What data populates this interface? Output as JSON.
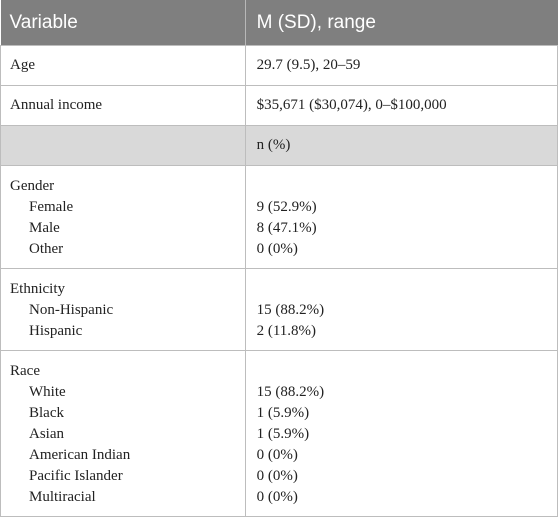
{
  "header": {
    "col1": "Variable",
    "col2": "M (SD), range"
  },
  "rows": [
    {
      "label": "Age",
      "value": "29.7 (9.5), 20–59"
    },
    {
      "label": "Annual income",
      "value": "$35,671 ($30,074), 0–$100,000"
    }
  ],
  "subheader": {
    "col2": "n (%)"
  },
  "groups": [
    {
      "title": "Gender",
      "items": [
        {
          "label": "Female",
          "value": "9 (52.9%)"
        },
        {
          "label": "Male",
          "value": "8 (47.1%)"
        },
        {
          "label": "Other",
          "value": "0 (0%)"
        }
      ]
    },
    {
      "title": "Ethnicity",
      "items": [
        {
          "label": "Non-Hispanic",
          "value": "15 (88.2%)"
        },
        {
          "label": "Hispanic",
          "value": "2 (11.8%)"
        }
      ]
    },
    {
      "title": "Race",
      "items": [
        {
          "label": "White",
          "value": "15 (88.2%)"
        },
        {
          "label": "Black",
          "value": "1 (5.9%)"
        },
        {
          "label": "Asian",
          "value": "1 (5.9%)"
        },
        {
          "label": "American Indian",
          "value": "0 (0%)"
        },
        {
          "label": "Pacific Islander",
          "value": "0 (0%)"
        },
        {
          "label": "Multiracial",
          "value": "0 (0%)"
        }
      ]
    }
  ]
}
